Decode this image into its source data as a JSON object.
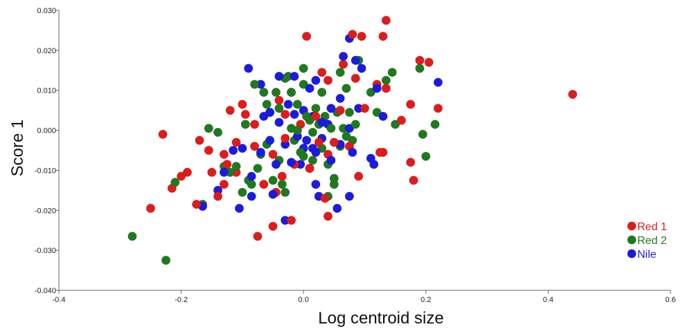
{
  "chart_data": {
    "type": "scatter",
    "xlabel": "Log centroid size",
    "ylabel": "Score 1",
    "xlim": [
      -0.4,
      0.6
    ],
    "ylim": [
      -0.04,
      0.03
    ],
    "x_ticks": [
      "-0.4",
      "-0.2",
      "0.0",
      "0.2",
      "0.4",
      "0.6"
    ],
    "y_ticks": [
      "0.030",
      "0.020",
      "0.010",
      "0.000",
      "-0.010",
      "-0.020",
      "-0.030",
      "-0.040"
    ],
    "grid": false,
    "legend_position": "bottom-right",
    "series": [
      {
        "name": "Red 1",
        "color": "#e01b1b",
        "points": [
          [
            0.005,
            0.0235
          ],
          [
            0.095,
            0.0235
          ],
          [
            0.135,
            0.0275
          ],
          [
            0.13,
            0.0235
          ],
          [
            0.08,
            0.024
          ],
          [
            0.19,
            0.0175
          ],
          [
            0.205,
            0.017
          ],
          [
            0.03,
            0.0145
          ],
          [
            0.065,
            0.0165
          ],
          [
            0.04,
            0.0125
          ],
          [
            0.085,
            0.013
          ],
          [
            0.12,
            0.0115
          ],
          [
            0.135,
            0.0105
          ],
          [
            0.175,
            0.0065
          ],
          [
            0.22,
            0.0055
          ],
          [
            0.44,
            0.009
          ],
          [
            -0.1,
            0.0065
          ],
          [
            -0.12,
            0.005
          ],
          [
            -0.04,
            0.0075
          ],
          [
            -0.03,
            0.004
          ],
          [
            -0.095,
            0.004
          ],
          [
            -0.08,
            0.0015
          ],
          [
            -0.02,
            0.0095
          ],
          [
            0.02,
            0.0035
          ],
          [
            0.06,
            0.005
          ],
          [
            0.1,
            0.0055
          ],
          [
            0.16,
            0.0025
          ],
          [
            -0.23,
            -0.001
          ],
          [
            -0.17,
            -0.0025
          ],
          [
            -0.155,
            -0.005
          ],
          [
            -0.13,
            -0.006
          ],
          [
            -0.11,
            -0.003
          ],
          [
            -0.08,
            -0.004
          ],
          [
            -0.05,
            -0.006
          ],
          [
            -0.03,
            -0.002
          ],
          [
            0.04,
            -0.006
          ],
          [
            0.075,
            -0.004
          ],
          [
            0.125,
            -0.0055
          ],
          [
            0.13,
            -0.0055
          ],
          [
            0.175,
            -0.008
          ],
          [
            -0.19,
            -0.0105
          ],
          [
            -0.2,
            -0.0115
          ],
          [
            -0.15,
            -0.0105
          ],
          [
            -0.125,
            -0.0085
          ],
          [
            -0.11,
            -0.0105
          ],
          [
            -0.015,
            -0.0085
          ],
          [
            -0.215,
            -0.0145
          ],
          [
            -0.13,
            -0.0135
          ],
          [
            -0.065,
            -0.0135
          ],
          [
            -0.035,
            -0.0115
          ],
          [
            0.09,
            -0.0115
          ],
          [
            0.18,
            -0.0125
          ],
          [
            -0.25,
            -0.0195
          ],
          [
            -0.175,
            -0.0185
          ],
          [
            -0.14,
            -0.0165
          ],
          [
            -0.045,
            -0.0155
          ],
          [
            0.035,
            -0.017
          ],
          [
            0.04,
            -0.0215
          ],
          [
            -0.02,
            -0.0225
          ],
          [
            -0.05,
            -0.024
          ],
          [
            -0.075,
            -0.0265
          ],
          [
            0.01,
            -0.0095
          ],
          [
            0.05,
            -0.003
          ],
          [
            -0.005,
            0.0015
          ],
          [
            0.025,
            -0.003
          ]
        ]
      },
      {
        "name": "Red 2",
        "color": "#1f7a1f",
        "points": [
          [
            -0.28,
            -0.0265
          ],
          [
            -0.225,
            -0.0325
          ],
          [
            -0.21,
            -0.013
          ],
          [
            -0.165,
            -0.0185
          ],
          [
            -0.155,
            0.0005
          ],
          [
            -0.14,
            -0.0005
          ],
          [
            -0.13,
            -0.009
          ],
          [
            -0.12,
            -0.0105
          ],
          [
            -0.11,
            -0.009
          ],
          [
            -0.1,
            -0.0155
          ],
          [
            -0.095,
            0.0015
          ],
          [
            -0.085,
            -0.0135
          ],
          [
            -0.08,
            0.0115
          ],
          [
            -0.075,
            -0.0095
          ],
          [
            -0.07,
            -0.006
          ],
          [
            -0.065,
            0.0095
          ],
          [
            -0.06,
            0.0065
          ],
          [
            -0.06,
            -0.0035
          ],
          [
            -0.055,
            0.0045
          ],
          [
            -0.05,
            -0.0125
          ],
          [
            -0.045,
            0.0095
          ],
          [
            -0.04,
            0.0055
          ],
          [
            -0.04,
            -0.0075
          ],
          [
            -0.035,
            -0.0135
          ],
          [
            -0.03,
            0.013
          ],
          [
            -0.025,
            0.0135
          ],
          [
            -0.02,
            0.0095
          ],
          [
            -0.02,
            0.0005
          ],
          [
            -0.015,
            -0.0025
          ],
          [
            -0.01,
            0.0065
          ],
          [
            -0.005,
            -0.0055
          ],
          [
            0.0,
            0.0115
          ],
          [
            0.0,
            0.0155
          ],
          [
            0.0,
            -0.0065
          ],
          [
            0.005,
            0.0035
          ],
          [
            0.01,
            0.0025
          ],
          [
            0.015,
            -0.0005
          ],
          [
            0.015,
            -0.0075
          ],
          [
            0.02,
            0.0055
          ],
          [
            0.025,
            0.0015
          ],
          [
            0.03,
            0.0095
          ],
          [
            0.03,
            -0.0045
          ],
          [
            0.035,
            0.0035
          ],
          [
            0.04,
            -0.0085
          ],
          [
            0.04,
            -0.0165
          ],
          [
            0.045,
            0.0005
          ],
          [
            0.05,
            -0.0135
          ],
          [
            0.055,
            0.0045
          ],
          [
            0.06,
            0.0145
          ],
          [
            0.065,
            0.0005
          ],
          [
            0.07,
            0.0105
          ],
          [
            0.07,
            -0.0015
          ],
          [
            0.075,
            0.0045
          ],
          [
            0.08,
            -0.0025
          ],
          [
            0.085,
            0.0015
          ],
          [
            0.09,
            0.0175
          ],
          [
            0.11,
            0.0095
          ],
          [
            0.12,
            0.0045
          ],
          [
            0.135,
            0.0125
          ],
          [
            0.145,
            0.0145
          ],
          [
            0.15,
            0.0015
          ],
          [
            0.19,
            0.0155
          ],
          [
            0.195,
            -0.001
          ],
          [
            0.2,
            -0.0065
          ],
          [
            0.215,
            0.0015
          ],
          [
            -0.03,
            -0.0155
          ],
          [
            -0.09,
            -0.0125
          ],
          [
            0.05,
            -0.012
          ],
          [
            -0.01,
            0.0
          ],
          [
            0.06,
            -0.004
          ]
        ]
      },
      {
        "name": "Nile",
        "color": "#1b1be0",
        "points": [
          [
            -0.09,
            0.0155
          ],
          [
            -0.07,
            0.0115
          ],
          [
            -0.04,
            0.0135
          ],
          [
            -0.015,
            0.0135
          ],
          [
            0.01,
            0.0105
          ],
          [
            0.02,
            0.0125
          ],
          [
            0.065,
            0.0185
          ],
          [
            0.075,
            0.023
          ],
          [
            0.085,
            0.0175
          ],
          [
            0.095,
            0.0155
          ],
          [
            0.12,
            0.0105
          ],
          [
            0.22,
            0.012
          ],
          [
            -0.065,
            0.0035
          ],
          [
            -0.055,
            0.0045
          ],
          [
            -0.04,
            0.002
          ],
          [
            -0.025,
            0.0065
          ],
          [
            -0.015,
            0.004
          ],
          [
            0.0,
            0.005
          ],
          [
            0.015,
            0.0035
          ],
          [
            0.03,
            0.002
          ],
          [
            0.045,
            0.0055
          ],
          [
            0.06,
            0.008
          ],
          [
            0.075,
            0.0005
          ],
          [
            0.09,
            0.0055
          ],
          [
            0.13,
            0.0035
          ],
          [
            -0.165,
            -0.019
          ],
          [
            -0.14,
            -0.015
          ],
          [
            -0.13,
            -0.0105
          ],
          [
            -0.115,
            -0.005
          ],
          [
            -0.1,
            -0.0045
          ],
          [
            -0.085,
            -0.0115
          ],
          [
            -0.07,
            -0.0055
          ],
          [
            -0.055,
            -0.0025
          ],
          [
            -0.045,
            -0.0085
          ],
          [
            -0.03,
            -0.0035
          ],
          [
            -0.02,
            -0.008
          ],
          [
            -0.01,
            -0.0015
          ],
          [
            0.0,
            -0.0045
          ],
          [
            0.01,
            -0.0095
          ],
          [
            0.02,
            -0.0055
          ],
          [
            0.03,
            -0.002
          ],
          [
            0.045,
            -0.0075
          ],
          [
            0.06,
            -0.0035
          ],
          [
            0.08,
            -0.0055
          ],
          [
            0.11,
            -0.007
          ],
          [
            0.115,
            -0.0085
          ],
          [
            -0.105,
            -0.0195
          ],
          [
            -0.085,
            -0.0165
          ],
          [
            -0.05,
            -0.016
          ],
          [
            -0.03,
            -0.0225
          ],
          [
            0.02,
            -0.0135
          ],
          [
            0.025,
            -0.0165
          ],
          [
            0.055,
            -0.0195
          ],
          [
            0.075,
            -0.0165
          ],
          [
            0.005,
            -0.0025
          ],
          [
            0.015,
            -0.0045
          ],
          [
            -0.005,
            -0.0085
          ],
          [
            0.04,
            0.0015
          ]
        ]
      }
    ]
  }
}
